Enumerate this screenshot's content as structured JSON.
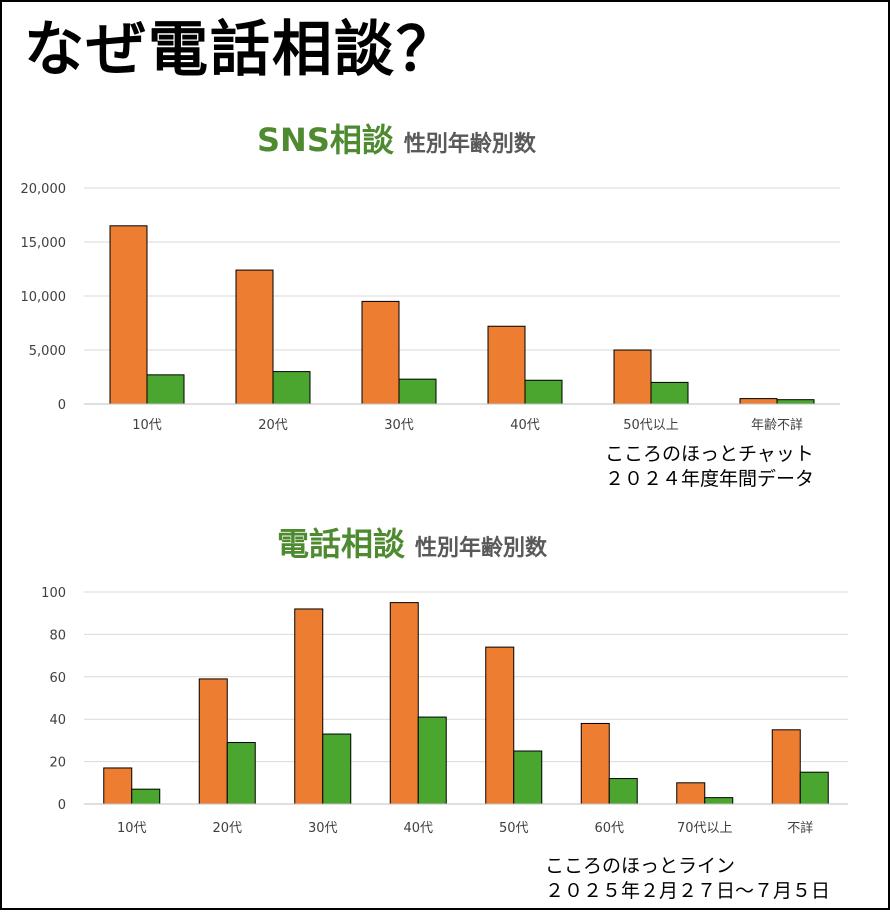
{
  "page": {
    "title": "なぜ電話相談？"
  },
  "colors": {
    "series1": "#ed7d31",
    "series2": "#4aa62e",
    "heading_green": "#4e8a2f",
    "heading_gray": "#595959",
    "grid": "#d9d9d9"
  },
  "charts": [
    {
      "heading_main": "SNS相談",
      "heading_sub": "性別年齢別数",
      "source_line1": "こころのほっとチャット",
      "source_line2": "２０２４年度年間データ"
    },
    {
      "heading_main": "電話相談",
      "heading_sub": "性別年齢別数",
      "source_line1": "こころのほっとライン",
      "source_line2": "２０２５年２月２７日～７月５日"
    }
  ],
  "chart_data": [
    {
      "type": "bar",
      "categories": [
        "10代",
        "20代",
        "30代",
        "40代",
        "50代以上",
        "年齢不詳"
      ],
      "series": [
        {
          "values": [
            16500,
            12400,
            9500,
            7200,
            5000,
            500
          ]
        },
        {
          "values": [
            2700,
            3000,
            2300,
            2200,
            2000,
            400
          ]
        }
      ],
      "yticks": [
        "0",
        "5,000",
        "10,000",
        "15,000",
        "20,000"
      ],
      "ylim": [
        0,
        20000
      ],
      "grid": true,
      "legend": "none"
    },
    {
      "type": "bar",
      "categories": [
        "10代",
        "20代",
        "30代",
        "40代",
        "50代",
        "60代",
        "70代以上",
        "不詳"
      ],
      "series": [
        {
          "values": [
            17,
            59,
            92,
            95,
            74,
            38,
            10,
            35
          ]
        },
        {
          "values": [
            7,
            29,
            33,
            41,
            25,
            12,
            3,
            15
          ]
        }
      ],
      "yticks": [
        "0",
        "20",
        "40",
        "60",
        "80",
        "100"
      ],
      "ylim": [
        0,
        100
      ],
      "grid": true,
      "legend": "none"
    }
  ]
}
